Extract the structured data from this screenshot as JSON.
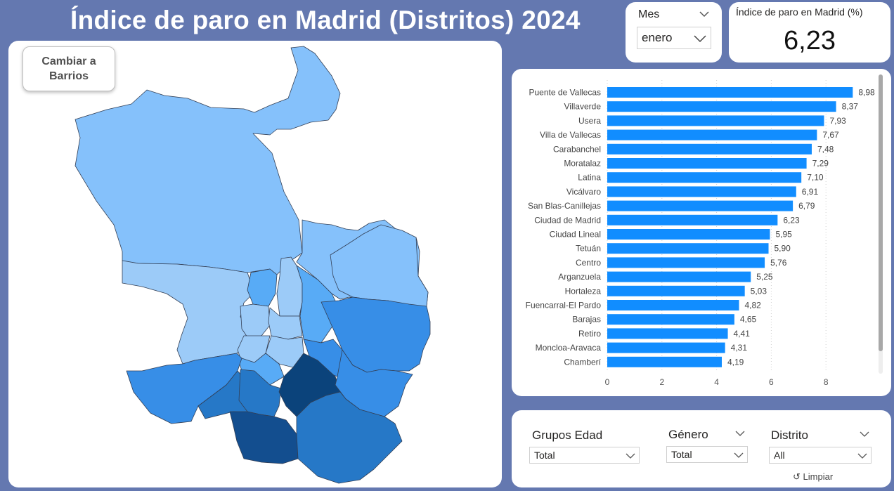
{
  "header": {
    "title": "Índice de paro en Madrid (Distritos) 2024"
  },
  "map": {
    "toggle_label": "Cambiar a Barrios",
    "colors": {
      "lightest": "#85c1fb",
      "light": "#9ccbf8",
      "mid_light": "#58abf6",
      "mid": "#378ee7",
      "mid_dark": "#2678c7",
      "dark": "#134e8f",
      "darkest": "#0b437b",
      "border": "#333f55"
    }
  },
  "mes_slicer": {
    "title": "Mes",
    "value": "enero"
  },
  "kpi": {
    "label": "Índice de paro en Madrid (%)",
    "value": "6,23"
  },
  "filters": {
    "grupos_edad": {
      "title": "Grupos Edad",
      "value": "Total"
    },
    "genero": {
      "title": "Género",
      "value": "Total"
    },
    "distrito": {
      "title": "Distrito",
      "value": "All"
    },
    "clear_label": "Limpiar"
  },
  "chart_data": {
    "type": "bar",
    "orientation": "horizontal",
    "bar_color": "#118dff",
    "categories": [
      "Puente de Vallecas",
      "Villaverde",
      "Usera",
      "Villa de Vallecas",
      "Carabanchel",
      "Moratalaz",
      "Latina",
      "Vicálvaro",
      "San Blas-Canillejas",
      "Ciudad de Madrid",
      "Ciudad Lineal",
      "Tetuán",
      "Centro",
      "Arganzuela",
      "Hortaleza",
      "Fuencarral-El Pardo",
      "Barajas",
      "Retiro",
      "Moncloa-Aravaca",
      "Chamberí"
    ],
    "values": [
      8.98,
      8.37,
      7.93,
      7.67,
      7.48,
      7.29,
      7.1,
      6.91,
      6.79,
      6.23,
      5.95,
      5.9,
      5.76,
      5.25,
      5.03,
      4.82,
      4.65,
      4.41,
      4.31,
      4.19
    ],
    "value_labels": [
      "8,98",
      "8,37",
      "7,93",
      "7,67",
      "7,48",
      "7,29",
      "7,10",
      "6,91",
      "6,79",
      "6,23",
      "5,95",
      "5,90",
      "5,76",
      "5,25",
      "5,03",
      "4,82",
      "4,65",
      "4,41",
      "4,31",
      "4,19"
    ],
    "x_ticks": [
      "0",
      "2",
      "4",
      "6",
      "8"
    ],
    "xlim": [
      0,
      9
    ],
    "grid": true,
    "legend": "none"
  }
}
